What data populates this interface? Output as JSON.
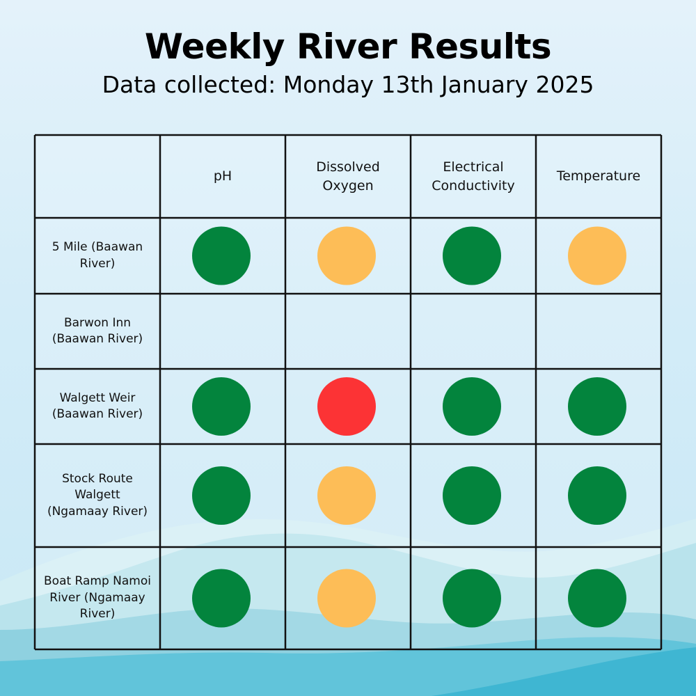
{
  "title": "Weekly River Results",
  "subtitle": "Data collected: Monday 13th January 2025",
  "colors": {
    "good": "#03843d",
    "moderate": "#fdbd57",
    "poor": "#fc3335",
    "grid": "#111111"
  },
  "chart_data": {
    "type": "table",
    "columns": [
      "pH",
      "Dissolved Oxygen",
      "Electrical Conductivity",
      "Temperature"
    ],
    "rows": [
      {
        "site": "5 Mile (Baawan River)",
        "values": [
          "good",
          "moderate",
          "good",
          "moderate"
        ]
      },
      {
        "site": "Barwon Inn (Baawan River)",
        "values": [
          null,
          null,
          null,
          null
        ]
      },
      {
        "site": "Walgett Weir (Baawan River)",
        "values": [
          "good",
          "poor",
          "good",
          "good"
        ]
      },
      {
        "site": "Stock Route Walgett (Ngamaay River)",
        "values": [
          "good",
          "moderate",
          "good",
          "good"
        ]
      },
      {
        "site": "Boat Ramp Namoi River (Ngamaay River)",
        "values": [
          "good",
          "moderate",
          "good",
          "good"
        ]
      }
    ]
  }
}
